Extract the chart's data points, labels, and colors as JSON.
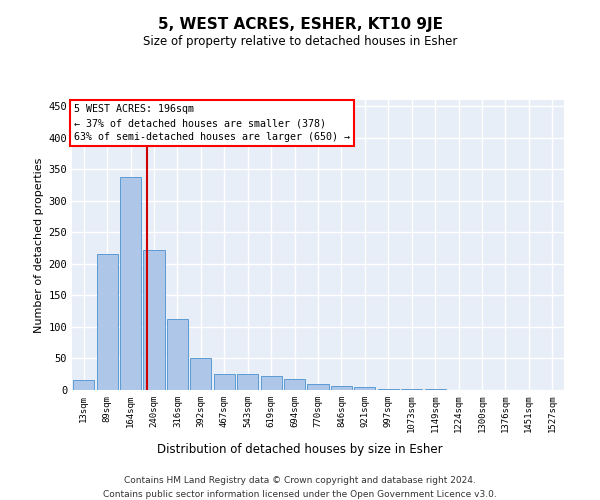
{
  "title": "5, WEST ACRES, ESHER, KT10 9JE",
  "subtitle": "Size of property relative to detached houses in Esher",
  "xlabel": "Distribution of detached houses by size in Esher",
  "ylabel": "Number of detached properties",
  "categories": [
    "13sqm",
    "89sqm",
    "164sqm",
    "240sqm",
    "316sqm",
    "392sqm",
    "467sqm",
    "543sqm",
    "619sqm",
    "694sqm",
    "770sqm",
    "846sqm",
    "921sqm",
    "997sqm",
    "1073sqm",
    "1149sqm",
    "1224sqm",
    "1300sqm",
    "1376sqm",
    "1451sqm",
    "1527sqm"
  ],
  "values": [
    16,
    215,
    338,
    222,
    113,
    50,
    25,
    25,
    23,
    17,
    9,
    7,
    4,
    2,
    1,
    1,
    0,
    0,
    0,
    0,
    0
  ],
  "bar_color": "#aec6e8",
  "bar_edge_color": "#5b9bd5",
  "background_color": "#e8eef7",
  "grid_color": "#ffffff",
  "annotation_box_text": "5 WEST ACRES: 196sqm\n← 37% of detached houses are smaller (378)\n63% of semi-detached houses are larger (650) →",
  "red_line_x": 2.72,
  "vline_color": "#cc0000",
  "footer1": "Contains HM Land Registry data © Crown copyright and database right 2024.",
  "footer2": "Contains public sector information licensed under the Open Government Licence v3.0.",
  "ylim": [
    0,
    460
  ],
  "yticks": [
    0,
    50,
    100,
    150,
    200,
    250,
    300,
    350,
    400,
    450
  ]
}
